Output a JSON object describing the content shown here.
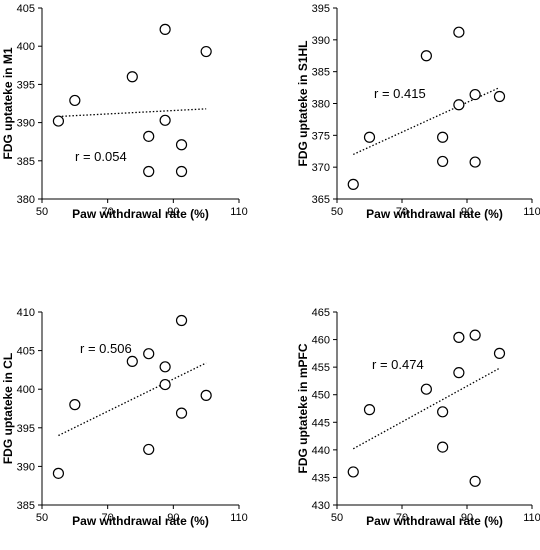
{
  "chart_data": [
    {
      "type": "scatter",
      "xlabel": "Paw withdrawal rate (%)",
      "ylabel": "FDG uptateke in M1",
      "xlim": [
        50,
        110
      ],
      "ylim": [
        380,
        405
      ],
      "x_ticks": [
        "50",
        "70",
        "90",
        "110"
      ],
      "y_ticks": [
        "380",
        "385",
        "390",
        "395",
        "400",
        "405"
      ],
      "annotation": "r = 0.054",
      "grid": false,
      "trendline": "dotted",
      "points": [
        {
          "x": 55,
          "y": 390.2
        },
        {
          "x": 60,
          "y": 392.9
        },
        {
          "x": 77.5,
          "y": 396.0
        },
        {
          "x": 82.5,
          "y": 383.6
        },
        {
          "x": 82.5,
          "y": 388.2
        },
        {
          "x": 87.5,
          "y": 402.2
        },
        {
          "x": 87.5,
          "y": 390.3
        },
        {
          "x": 92.5,
          "y": 387.1
        },
        {
          "x": 92.5,
          "y": 383.6
        },
        {
          "x": 100,
          "y": 399.3
        }
      ],
      "trend": {
        "x": [
          55,
          100
        ],
        "y": [
          390.8,
          391.8
        ]
      }
    },
    {
      "type": "scatter",
      "xlabel": "Paw withdrawal rate (%)",
      "ylabel": "FDG uptateke in S1HL",
      "xlim": [
        50,
        110
      ],
      "ylim": [
        365,
        395
      ],
      "x_ticks": [
        "50",
        "70",
        "90",
        "110"
      ],
      "y_ticks": [
        "365",
        "370",
        "375",
        "380",
        "385",
        "390",
        "395"
      ],
      "annotation": "r = 0.415",
      "grid": false,
      "trendline": "dotted",
      "points": [
        {
          "x": 55,
          "y": 367.3
        },
        {
          "x": 60,
          "y": 374.7
        },
        {
          "x": 77.5,
          "y": 387.5
        },
        {
          "x": 82.5,
          "y": 374.7
        },
        {
          "x": 82.5,
          "y": 370.9
        },
        {
          "x": 87.5,
          "y": 391.2
        },
        {
          "x": 87.5,
          "y": 379.8
        },
        {
          "x": 92.5,
          "y": 381.4
        },
        {
          "x": 92.5,
          "y": 370.8
        },
        {
          "x": 100,
          "y": 381.1
        }
      ],
      "trend": {
        "x": [
          55,
          100
        ],
        "y": [
          372.0,
          382.5
        ]
      }
    },
    {
      "type": "scatter",
      "xlabel": "Paw withdrawal rate (%)",
      "ylabel": "FDG uptateke in CL",
      "xlim": [
        50,
        110
      ],
      "ylim": [
        385,
        410
      ],
      "x_ticks": [
        "50",
        "70",
        "90",
        "110"
      ],
      "y_ticks": [
        "385",
        "390",
        "395",
        "400",
        "405",
        "410"
      ],
      "annotation": "r = 0.506",
      "grid": false,
      "trendline": "dotted",
      "points": [
        {
          "x": 55,
          "y": 389.1
        },
        {
          "x": 60,
          "y": 398.0
        },
        {
          "x": 77.5,
          "y": 403.6
        },
        {
          "x": 82.5,
          "y": 404.6
        },
        {
          "x": 82.5,
          "y": 392.2
        },
        {
          "x": 87.5,
          "y": 402.9
        },
        {
          "x": 87.5,
          "y": 400.6
        },
        {
          "x": 92.5,
          "y": 408.9
        },
        {
          "x": 92.5,
          "y": 396.9
        },
        {
          "x": 100,
          "y": 399.2
        }
      ],
      "trend": {
        "x": [
          55,
          100
        ],
        "y": [
          394.0,
          403.4
        ]
      }
    },
    {
      "type": "scatter",
      "xlabel": "Paw withdrawal rate (%)",
      "ylabel": "FDG uptateke in mPFC",
      "xlim": [
        50,
        110
      ],
      "ylim": [
        430,
        465
      ],
      "x_ticks": [
        "50",
        "70",
        "90",
        "110"
      ],
      "y_ticks": [
        "430",
        "435",
        "440",
        "445",
        "450",
        "455",
        "460",
        "465"
      ],
      "annotation": "r = 0.474",
      "grid": false,
      "trendline": "dotted",
      "points": [
        {
          "x": 55,
          "y": 436.0
        },
        {
          "x": 60,
          "y": 447.3
        },
        {
          "x": 77.5,
          "y": 451.0
        },
        {
          "x": 82.5,
          "y": 446.9
        },
        {
          "x": 82.5,
          "y": 440.5
        },
        {
          "x": 87.5,
          "y": 460.4
        },
        {
          "x": 87.5,
          "y": 454.0
        },
        {
          "x": 92.5,
          "y": 460.8
        },
        {
          "x": 92.5,
          "y": 434.3
        },
        {
          "x": 100,
          "y": 457.5
        }
      ],
      "trend": {
        "x": [
          55,
          100
        ],
        "y": [
          440.2,
          454.8
        ]
      }
    }
  ]
}
